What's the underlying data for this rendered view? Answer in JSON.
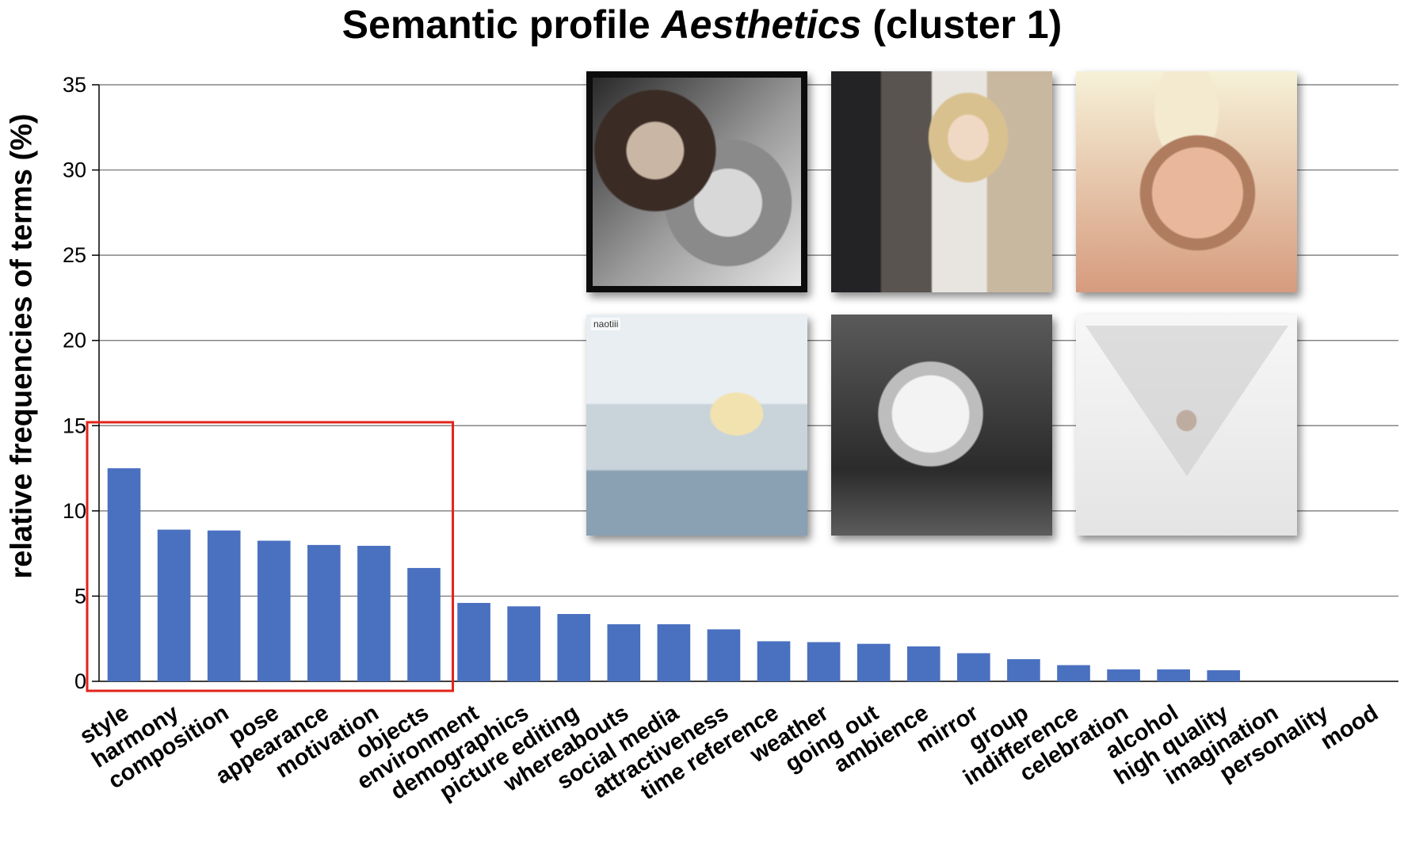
{
  "chart_data": {
    "type": "bar",
    "title_prefix": "Semantic profile ",
    "title_italic": "Aesthetics",
    "title_suffix": " (cluster 1)",
    "xlabel": "",
    "ylabel": "relative frequencies of terms (%)",
    "ylim": [
      0,
      35
    ],
    "yticks": [
      "0",
      "5",
      "10",
      "15",
      "20",
      "25",
      "30",
      "35"
    ],
    "grid": true,
    "bar_color": "#4a70c0",
    "highlight_color": "#e2231a",
    "highlight_range": [
      0,
      6
    ],
    "categories": [
      "style",
      "harmony",
      "composition",
      "pose",
      "appearance",
      "motivation",
      "objects",
      "environment",
      "demographics",
      "picture editing",
      "whereabouts",
      "social media",
      "attractiveness",
      "time reference",
      "weather",
      "going out",
      "ambience",
      "mirror",
      "group",
      "indifference",
      "celebration",
      "alcohol",
      "high quality",
      "imagination",
      "personality",
      "mood"
    ],
    "values": [
      12.5,
      8.9,
      8.85,
      8.25,
      8.0,
      7.95,
      6.65,
      4.6,
      4.4,
      3.95,
      3.35,
      3.35,
      3.05,
      2.35,
      2.3,
      2.2,
      2.05,
      1.65,
      1.3,
      0.95,
      0.7,
      0.7,
      0.65,
      0,
      0,
      0
    ]
  },
  "photos": [
    {
      "name": "photo-man-hoodie-glasses",
      "watermark": ""
    },
    {
      "name": "photo-woman-mirror-selfie",
      "watermark": ""
    },
    {
      "name": "photo-man-blond-closeup",
      "watermark": ""
    },
    {
      "name": "photo-woman-yellow-dress",
      "watermark": "naotiii"
    },
    {
      "name": "photo-woman-bw-lips",
      "watermark": ""
    },
    {
      "name": "photo-man-triangle-mirror",
      "watermark": ""
    }
  ]
}
